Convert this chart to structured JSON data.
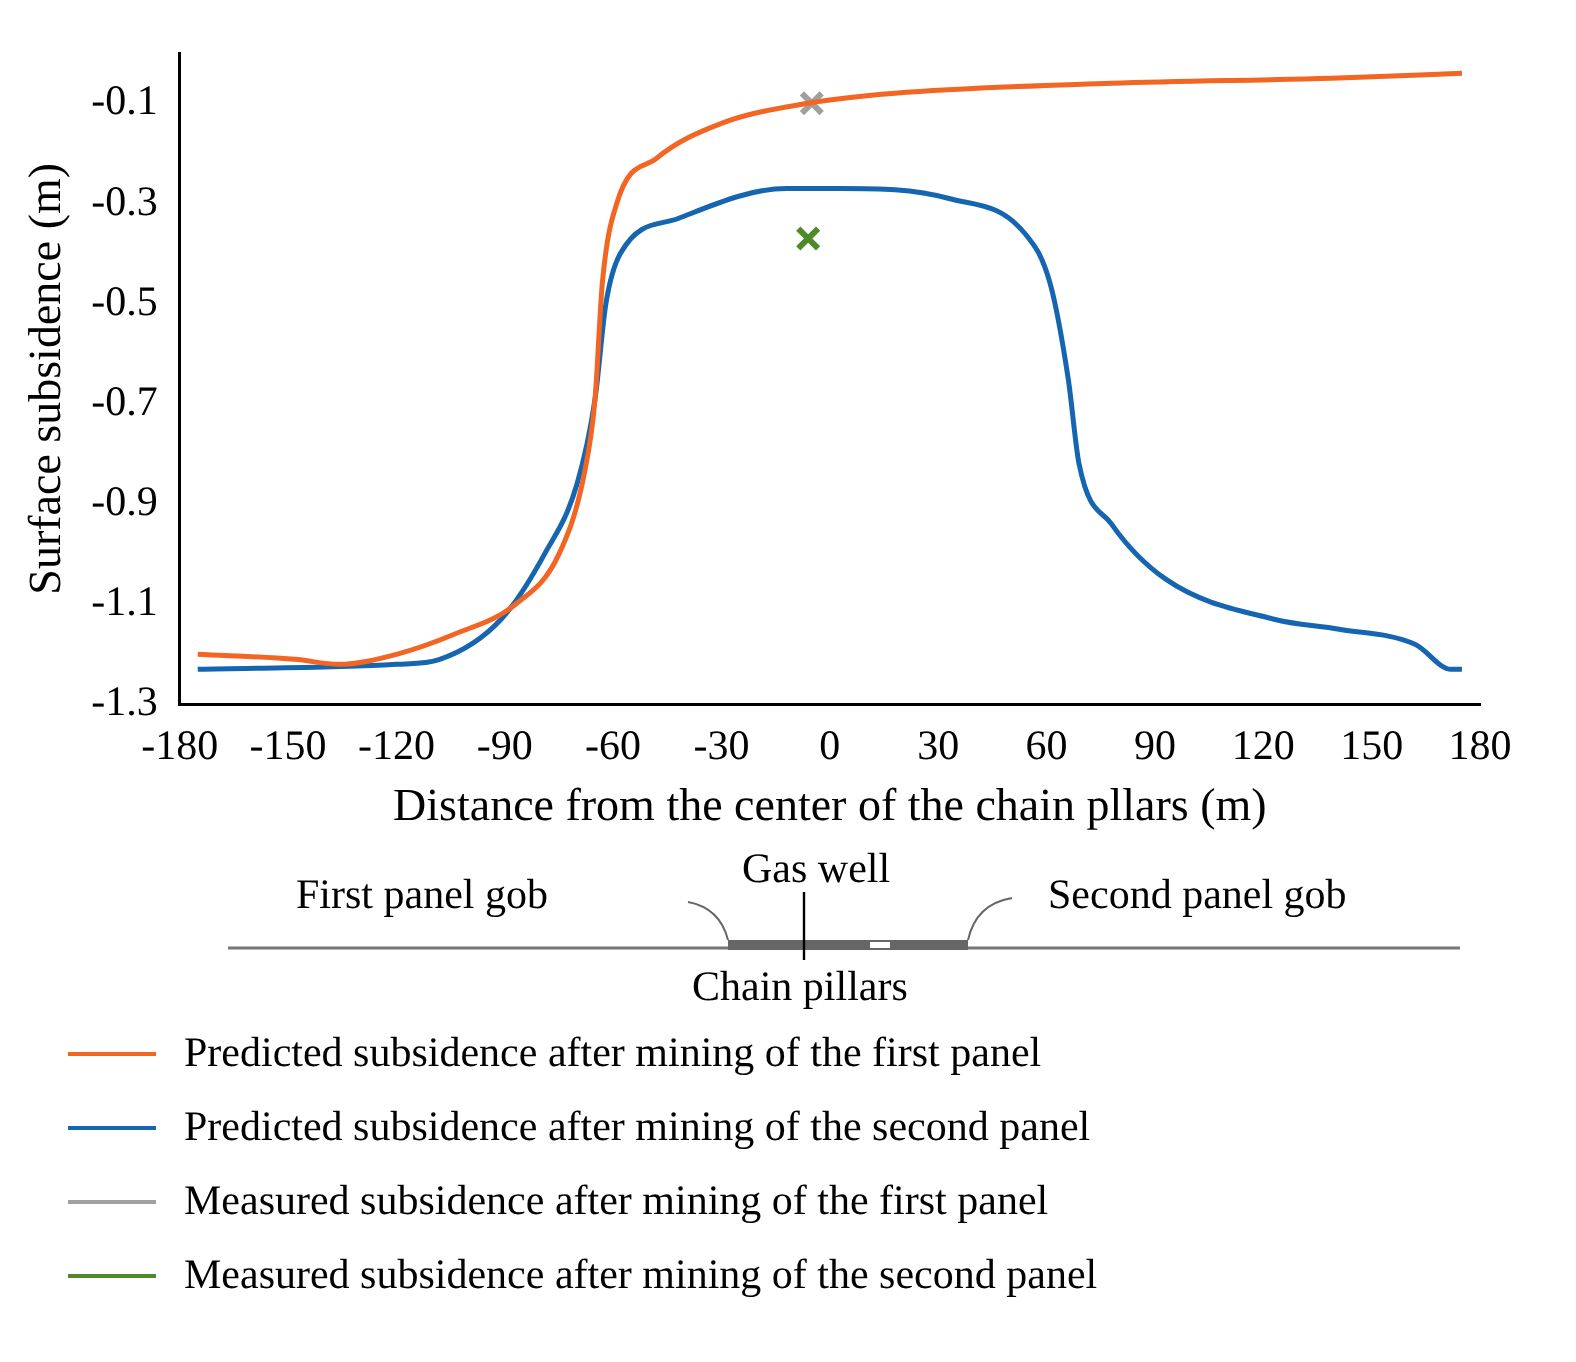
{
  "chart_data": {
    "type": "line",
    "xlabel": "Distance from the center of the chain pllars (m)",
    "ylabel": "Surface subsidence (m)",
    "xlim": [
      -180,
      180
    ],
    "xticks": [
      -180,
      -150,
      -120,
      -90,
      -60,
      -30,
      0,
      30,
      60,
      90,
      120,
      150,
      180
    ],
    "ylim": [
      -1.3,
      0
    ],
    "yticks": [
      -1.3,
      -1.1,
      -0.9,
      -0.7,
      -0.5,
      -0.3,
      -0.1
    ],
    "grid": false,
    "legend": "bottom",
    "annotations": [
      "First panel gob",
      "Gas well",
      "Second panel gob",
      "Chain pillars"
    ],
    "series": [
      {
        "name": "Predicted subsidence after mining of the first panel",
        "color": "#f26522",
        "marker": "none",
        "x": [
          -175,
          -148,
          -136,
          -120,
          -104,
          -87,
          -75,
          -68,
          -65,
          -63,
          -59,
          -48,
          -30,
          -6,
          18,
          78,
          139,
          175
        ],
        "values": [
          -1.2,
          -1.21,
          -1.22,
          -1.2,
          -1.16,
          -1.1,
          -1.0,
          -0.84,
          -0.69,
          -0.46,
          -0.3,
          -0.21,
          -0.14,
          -0.1,
          -0.08,
          -0.06,
          -0.05,
          -0.04
        ]
      },
      {
        "name": "Predicted subsidence after mining of the second panel",
        "color": "#1565b0",
        "marker": "none",
        "x": [
          -175,
          -120,
          -108,
          -91,
          -79,
          -70,
          -65,
          -62,
          -58,
          -42,
          -12,
          3,
          33,
          54,
          61,
          66,
          69,
          78,
          93,
          123,
          141,
          162,
          172,
          175
        ],
        "values": [
          -1.23,
          -1.22,
          -1.21,
          -1.13,
          -1.0,
          -0.86,
          -0.69,
          -0.5,
          -0.4,
          -0.33,
          -0.27,
          -0.27,
          -0.29,
          -0.36,
          -0.46,
          -0.65,
          -0.82,
          -0.94,
          -1.05,
          -1.13,
          -1.15,
          -1.18,
          -1.23,
          -1.23
        ]
      },
      {
        "name": "Measured subsidence after mining of the first panel",
        "color": "#a0a0a0",
        "type": "scatter",
        "marker": "cross",
        "x": [
          -5
        ],
        "values": [
          -0.1
        ]
      },
      {
        "name": "Measured subsidence after mining of the second panel",
        "color": "#4f8a2a",
        "type": "scatter",
        "marker": "cross",
        "x": [
          -6
        ],
        "values": [
          -0.37
        ]
      }
    ]
  }
}
